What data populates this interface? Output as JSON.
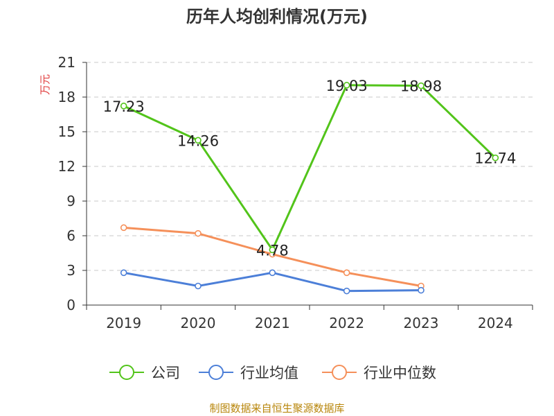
{
  "chart_data": {
    "type": "line",
    "title": "历年人均创利情况(万元)",
    "ylabel": "万元",
    "xlabel": "",
    "categories": [
      "2019",
      "2020",
      "2021",
      "2022",
      "2023",
      "2024"
    ],
    "ylim": [
      0,
      21
    ],
    "yticks": [
      0,
      3,
      6,
      9,
      12,
      15,
      18,
      21
    ],
    "grid": true,
    "legend_position": "bottom",
    "series": [
      {
        "name": "公司",
        "color": "#52c41a",
        "values": [
          17.23,
          14.26,
          4.78,
          19.03,
          18.98,
          12.74
        ],
        "labels": [
          "17.23",
          "14.26",
          "4.78",
          "19.03",
          "18.98",
          "12.74"
        ]
      },
      {
        "name": "行业均值",
        "color": "#4c7fd8",
        "values": [
          2.8,
          1.65,
          2.8,
          1.22,
          1.28,
          null
        ]
      },
      {
        "name": "行业中位数",
        "color": "#f5905a",
        "values": [
          6.7,
          6.2,
          4.4,
          2.8,
          1.65,
          null
        ]
      }
    ],
    "source": "制图数据来自恒生聚源数据库",
    "unit_color": "#e03c3c",
    "source_color": "#b8860b"
  }
}
